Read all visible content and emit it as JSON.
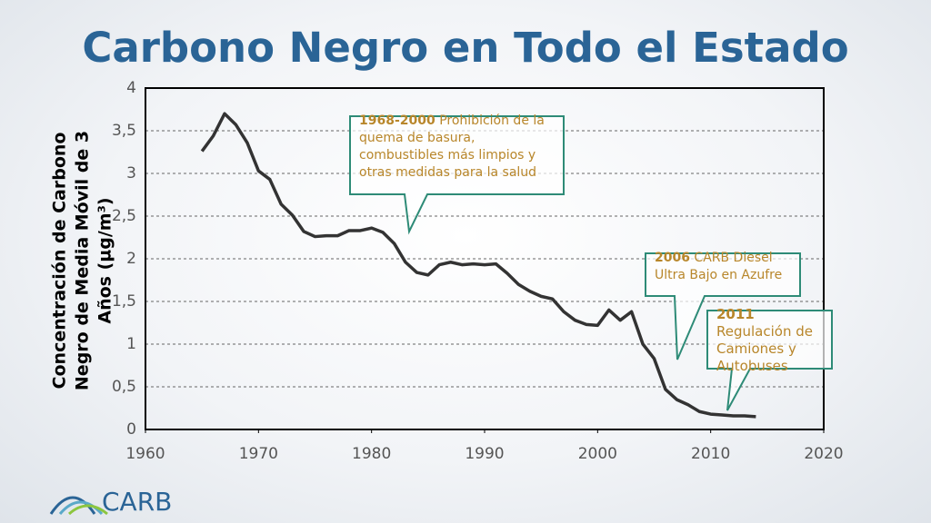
{
  "chart_data": {
    "type": "line",
    "title": "Carbono Negro en Todo el Estado",
    "y_label": [
      "Concentración de Carbono",
      "Negro de Media Móvil de 3",
      "Años (µg/m³)"
    ],
    "x": [
      1965,
      1966,
      1967,
      1968,
      1969,
      1970,
      1971,
      1972,
      1973,
      1974,
      1975,
      1976,
      1977,
      1978,
      1979,
      1980,
      1981,
      1982,
      1983,
      1984,
      1985,
      1986,
      1987,
      1988,
      1989,
      1990,
      1991,
      1992,
      1993,
      1994,
      1995,
      1996,
      1997,
      1998,
      1999,
      2000,
      2001,
      2002,
      2003,
      2004,
      2005,
      2006,
      2007,
      2008,
      2009,
      2010,
      2011,
      2012,
      2013,
      2014
    ],
    "values": [
      3.26,
      3.44,
      3.7,
      3.57,
      3.36,
      3.03,
      2.93,
      2.64,
      2.51,
      2.32,
      2.26,
      2.27,
      2.27,
      2.33,
      2.33,
      2.36,
      2.31,
      2.18,
      1.96,
      1.84,
      1.81,
      1.93,
      1.96,
      1.93,
      1.94,
      1.93,
      1.94,
      1.83,
      1.7,
      1.62,
      1.56,
      1.53,
      1.38,
      1.28,
      1.23,
      1.22,
      1.4,
      1.28,
      1.38,
      1.0,
      0.83,
      0.47,
      0.35,
      0.29,
      0.21,
      0.18,
      0.17,
      0.16,
      0.16,
      0.15
    ],
    "color": "#333333",
    "xlim": [
      1960,
      2020
    ],
    "xticks": [
      1960,
      1970,
      1980,
      1990,
      2000,
      2010,
      2020
    ],
    "ylim": [
      0,
      4
    ],
    "yticks": [
      0,
      {
        "value": 0.5,
        "label": "0,5"
      },
      1,
      {
        "value": 1.5,
        "label": "1,5"
      },
      2,
      {
        "value": 2.5,
        "label": "2,5"
      },
      3,
      {
        "value": 3.5,
        "label": "3,5"
      },
      4
    ],
    "grid": true,
    "annotations": [
      {
        "year": "1968-2000",
        "text": "Prohibición de la quema de basura, combustibles más limpios y otras medidas para la salud"
      },
      {
        "year": "2006",
        "text": "CARB Diesel Ultra Bajo en Azufre"
      },
      {
        "year": "2011",
        "text": "Regulación de Camiones y Autobuses"
      }
    ]
  },
  "logo": "CARB"
}
